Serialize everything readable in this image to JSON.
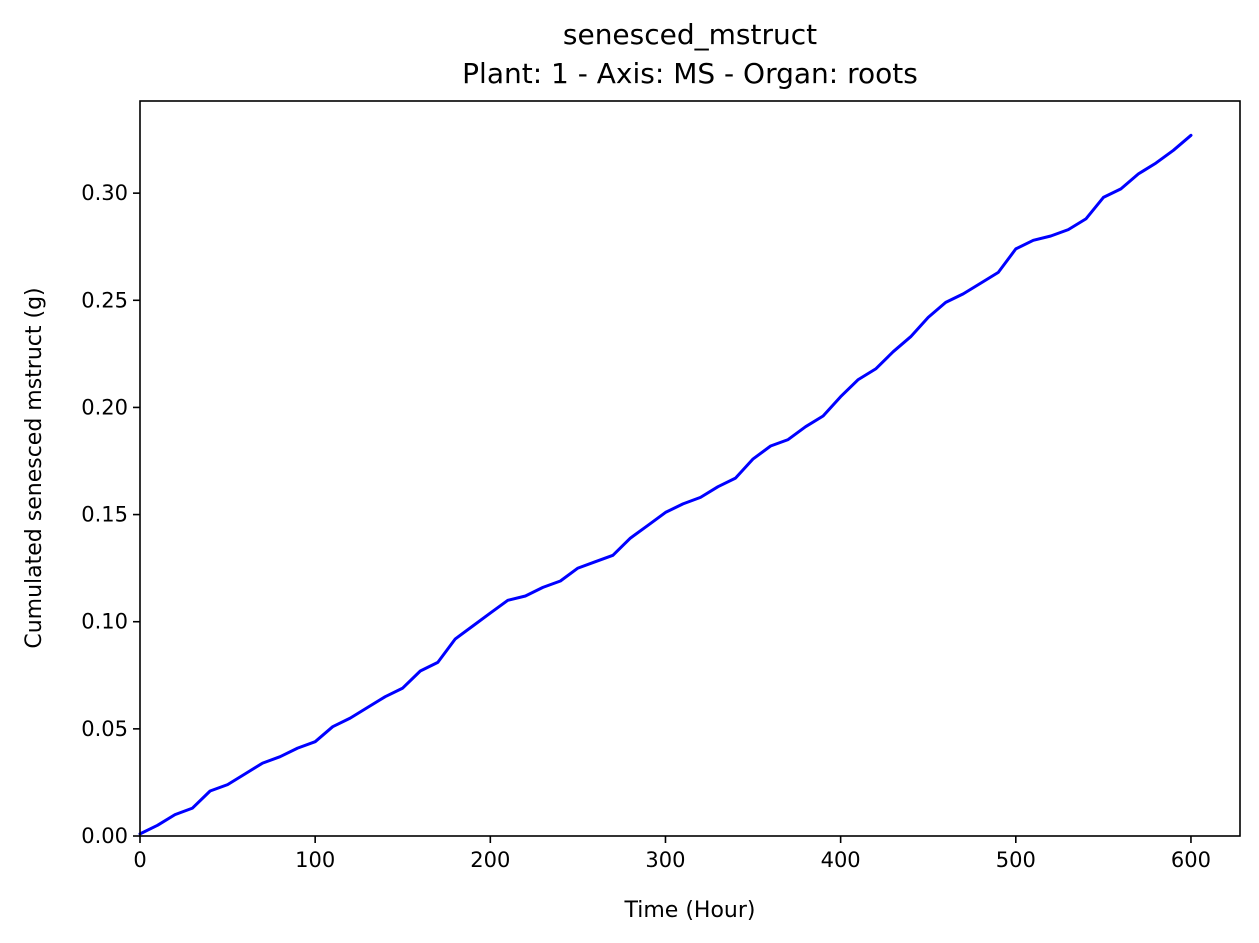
{
  "chart_data": {
    "type": "line",
    "title": "senesced_mstruct",
    "subtitle": "Plant: 1 - Axis: MS - Organ: roots",
    "xlabel": "Time (Hour)",
    "ylabel": "Cumulated senesced mstruct (g)",
    "xlim": [
      0,
      628
    ],
    "ylim": [
      0,
      0.343
    ],
    "xticks": [
      "0",
      "100",
      "200",
      "300",
      "400",
      "500",
      "600"
    ],
    "yticks": [
      "0.00",
      "0.05",
      "0.10",
      "0.15",
      "0.20",
      "0.25",
      "0.30"
    ],
    "grid": false,
    "series": [
      {
        "color": "#0000ff",
        "x": [
          0,
          10,
          20,
          30,
          40,
          50,
          60,
          70,
          80,
          90,
          100,
          110,
          120,
          130,
          140,
          150,
          160,
          170,
          180,
          190,
          200,
          210,
          220,
          230,
          240,
          250,
          260,
          270,
          280,
          290,
          300,
          310,
          320,
          330,
          340,
          350,
          360,
          370,
          380,
          390,
          400,
          410,
          420,
          430,
          440,
          450,
          460,
          470,
          480,
          490,
          500,
          510,
          520,
          530,
          540,
          550,
          560,
          570,
          580,
          590,
          600
        ],
        "y": [
          0.001,
          0.005,
          0.01,
          0.013,
          0.021,
          0.024,
          0.029,
          0.034,
          0.037,
          0.041,
          0.044,
          0.051,
          0.055,
          0.06,
          0.065,
          0.069,
          0.077,
          0.081,
          0.092,
          0.098,
          0.104,
          0.11,
          0.112,
          0.116,
          0.119,
          0.125,
          0.128,
          0.131,
          0.139,
          0.145,
          0.151,
          0.155,
          0.158,
          0.163,
          0.167,
          0.176,
          0.182,
          0.185,
          0.191,
          0.196,
          0.205,
          0.213,
          0.218,
          0.226,
          0.233,
          0.242,
          0.249,
          0.253,
          0.258,
          0.263,
          0.274,
          0.278,
          0.28,
          0.283,
          0.288,
          0.298,
          0.302,
          0.309,
          0.314,
          0.32,
          0.327
        ]
      }
    ]
  }
}
